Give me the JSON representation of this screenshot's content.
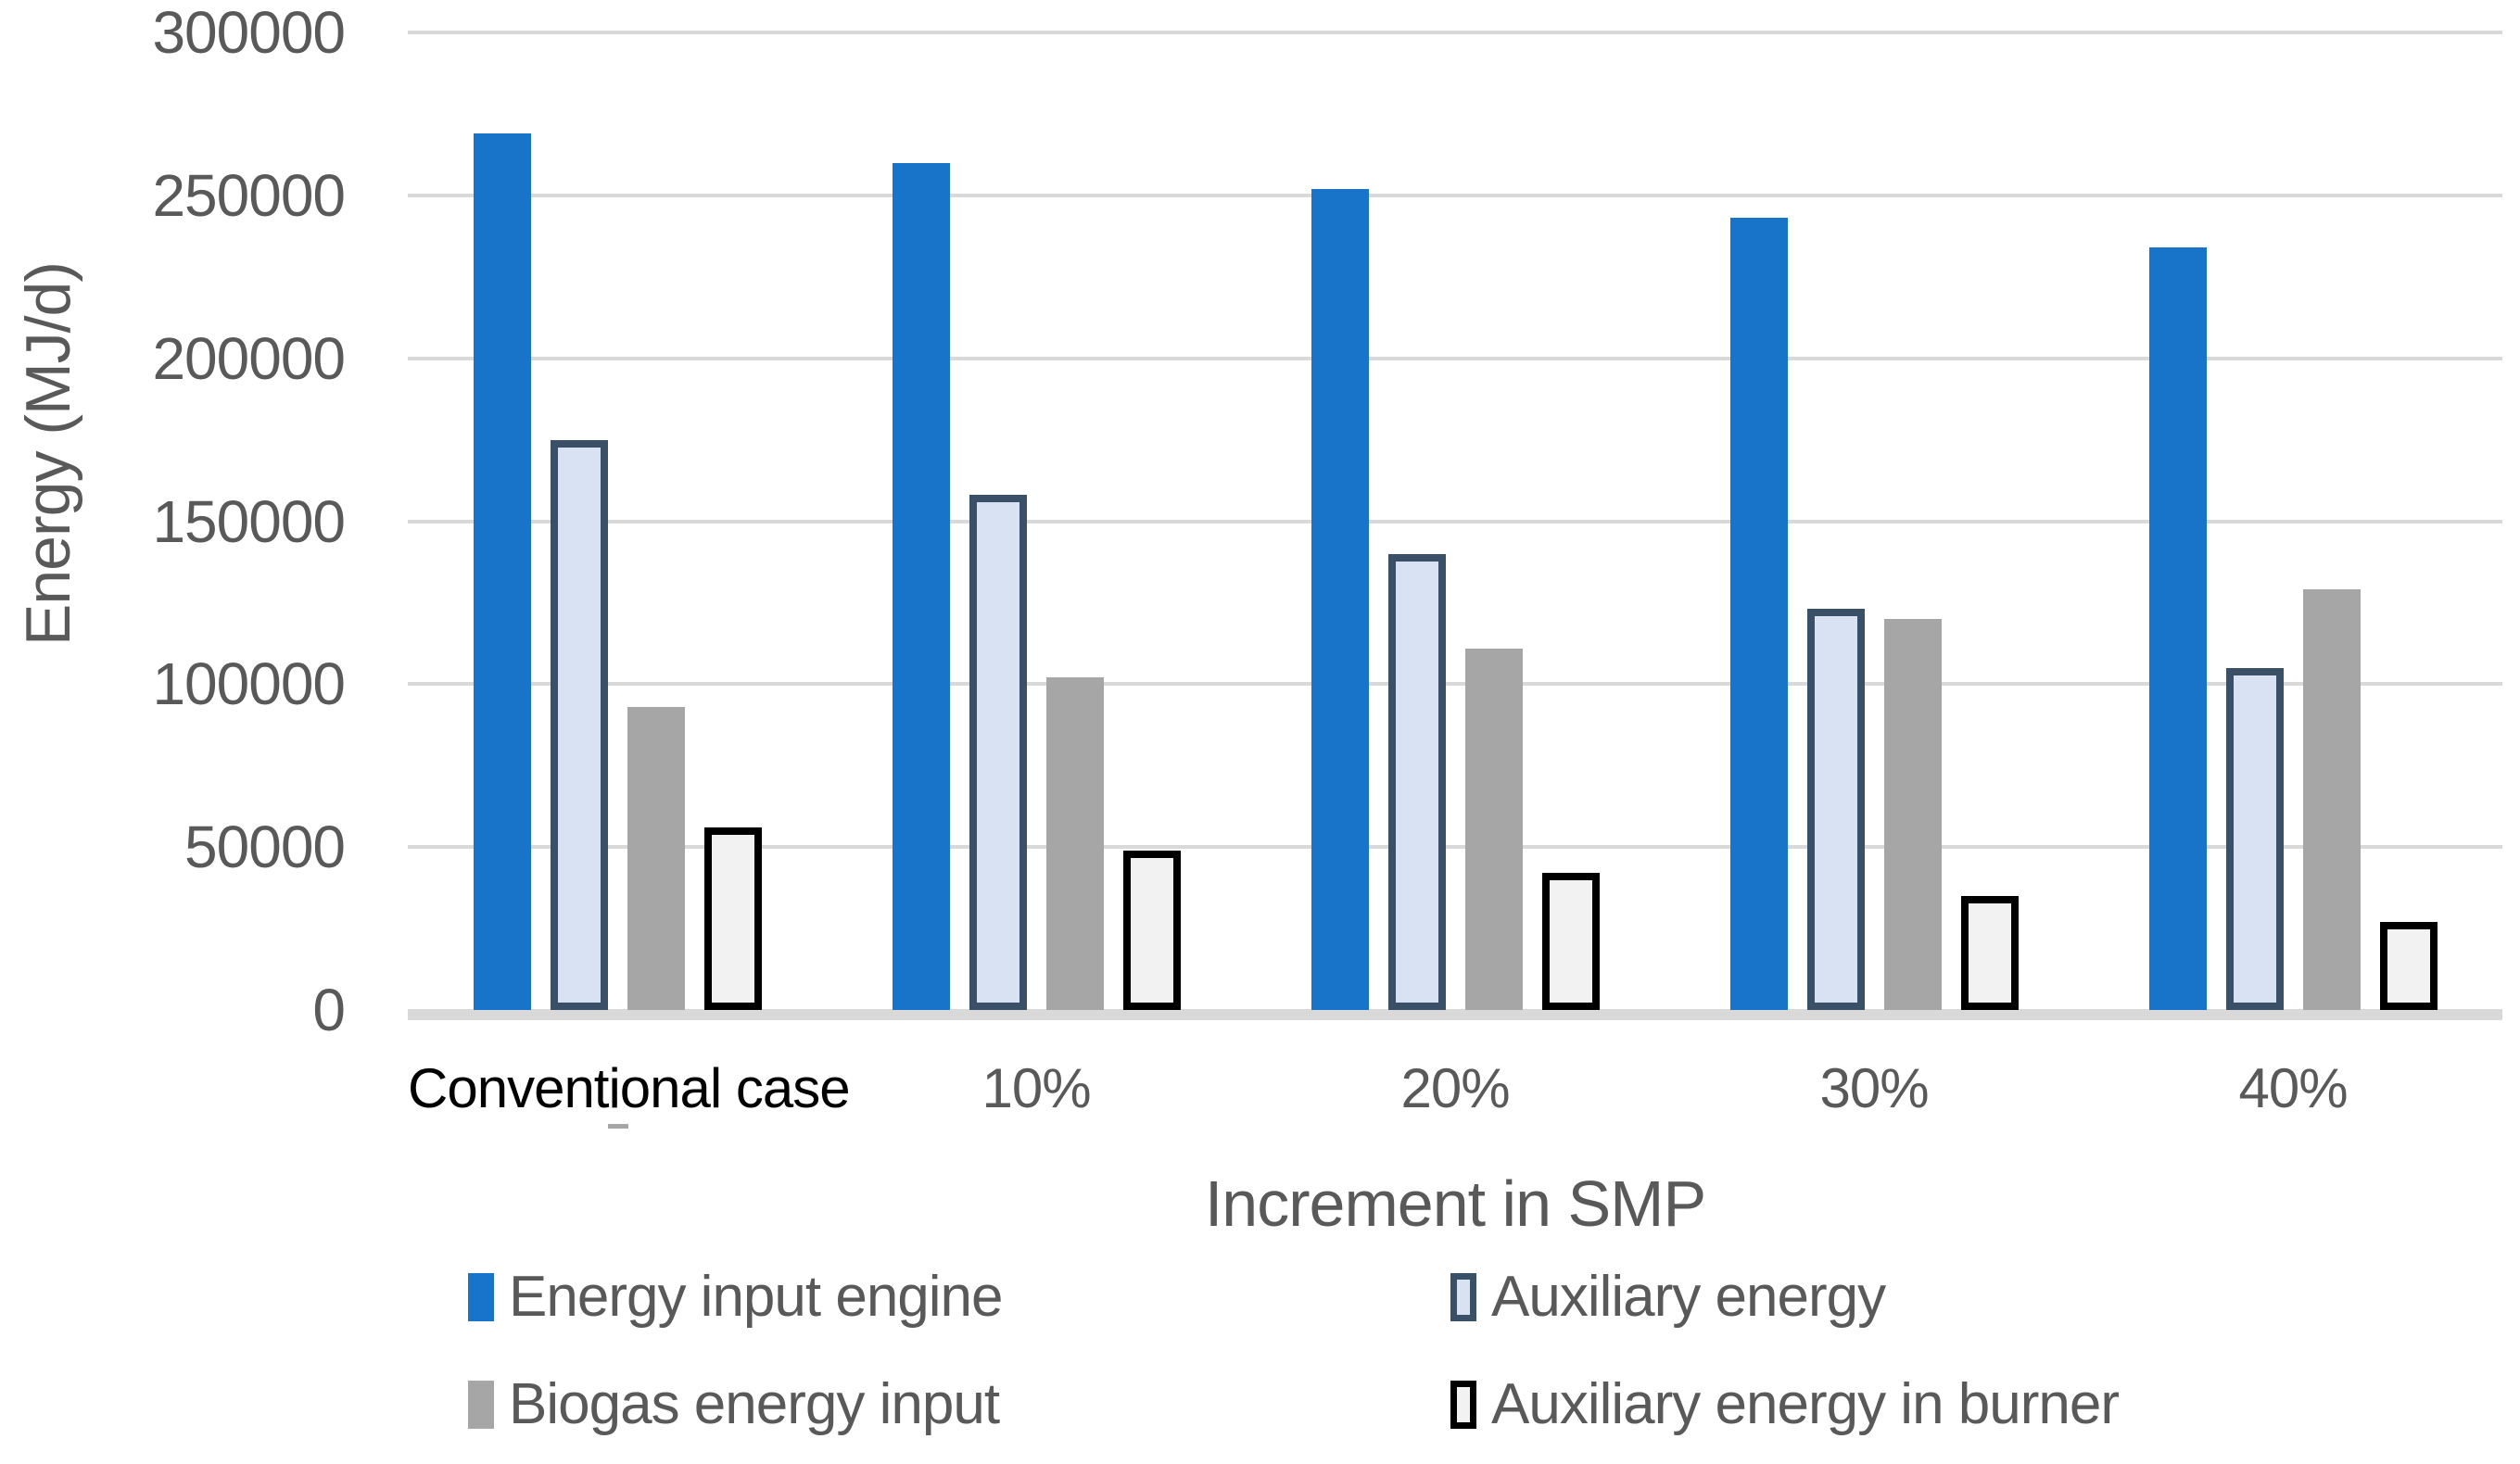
{
  "chart_data": {
    "type": "bar",
    "title": "",
    "xlabel": "Increment in SMP",
    "ylabel": "Energy (MJ/d)",
    "categories": [
      "Conventional case",
      "10%",
      "20%",
      "30%",
      "40%"
    ],
    "series": [
      {
        "name": "Energy input engine",
        "values": [
          269000,
          260000,
          252000,
          243000,
          234000
        ],
        "fill": "#1874C9",
        "border_color": null
      },
      {
        "name": "Auxiliary energy",
        "values": [
          175000,
          158000,
          140000,
          123000,
          105000
        ],
        "fill": "#D9E2F3",
        "border_color": "#3A5066"
      },
      {
        "name": "Biogas energy input",
        "values": [
          93000,
          102000,
          111000,
          120000,
          129000
        ],
        "fill": "#A6A6A6",
        "border_color": null
      },
      {
        "name": "Auxiliary energy in burner",
        "values": [
          56000,
          49000,
          42000,
          35000,
          27000
        ],
        "fill": "#F2F2F2",
        "border_color": "#000000"
      }
    ],
    "ylim": [
      0,
      300000
    ],
    "ytick_step": 50000,
    "yticks": [
      "300000",
      "250000",
      "200000",
      "150000",
      "100000",
      "50000",
      "0"
    ],
    "grid": true,
    "legend_position": "bottom",
    "category_label_colors": [
      "#000000",
      "#595959",
      "#595959",
      "#595959",
      "#595959"
    ]
  },
  "style": {
    "axis_text_color": "#595959",
    "gridline_color": "#D9D9D9",
    "background": "#FFFFFF"
  }
}
